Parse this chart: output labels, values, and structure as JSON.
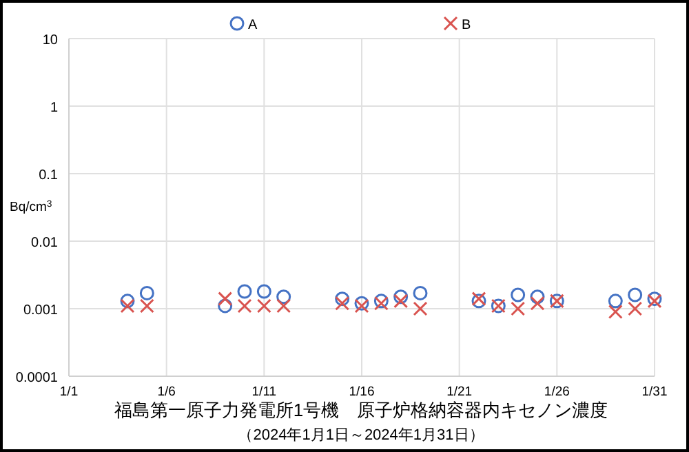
{
  "chart_data": {
    "type": "scatter",
    "title": "福島第一原子力発電所1号機　原子炉格納容器内キセノン濃度",
    "subtitle": "（2024年1月1日～2024年1月31日）",
    "ylabel": "Bq/cm$^{3}$",
    "x": [
      "2024-01-04",
      "2024-01-05",
      "2024-01-09",
      "2024-01-10",
      "2024-01-11",
      "2024-01-12",
      "2024-01-15",
      "2024-01-16",
      "2024-01-17",
      "2024-01-18",
      "2024-01-19",
      "2024-01-22",
      "2024-01-23",
      "2024-01-24",
      "2024-01-25",
      "2024-01-26",
      "2024-01-29",
      "2024-01-30",
      "2024-01-31"
    ],
    "series": [
      {
        "name": "A",
        "color": "#4472c4",
        "marker": "circle",
        "values": [
          0.0013,
          0.0017,
          0.0011,
          0.0018,
          0.0018,
          0.0015,
          0.0014,
          0.0012,
          0.0013,
          0.0015,
          0.0017,
          0.0013,
          0.0011,
          0.0016,
          0.0015,
          0.0013,
          0.0013,
          0.0016,
          0.0014
        ]
      },
      {
        "name": "B",
        "color": "#d9534f",
        "marker": "cross",
        "values": [
          0.0011,
          0.0011,
          0.0014,
          0.0011,
          0.0011,
          0.0011,
          0.0012,
          0.0011,
          0.0012,
          0.0013,
          0.001,
          0.0014,
          0.0011,
          0.001,
          0.0012,
          0.0013,
          0.0009,
          0.001,
          0.0013
        ]
      }
    ],
    "log": true,
    "ylim": [
      0.0001,
      10
    ],
    "yticks": [
      0.0001,
      0.001,
      0.01,
      0.1,
      1,
      10
    ],
    "xlim": [
      "2024-01-01",
      "2024-01-31"
    ],
    "xticks": [
      {
        "value": "2024-01-01",
        "label": "1/1"
      },
      {
        "value": "2024-01-06",
        "label": "1/6"
      },
      {
        "value": "2024-01-11",
        "label": "1/11"
      },
      {
        "value": "2024-01-16",
        "label": "1/16"
      },
      {
        "value": "2024-01-21",
        "label": "1/21"
      },
      {
        "value": "2024-01-26",
        "label": "1/26"
      },
      {
        "value": "2024-01-31",
        "label": "1/31"
      }
    ],
    "grid": true,
    "legend": "top"
  }
}
